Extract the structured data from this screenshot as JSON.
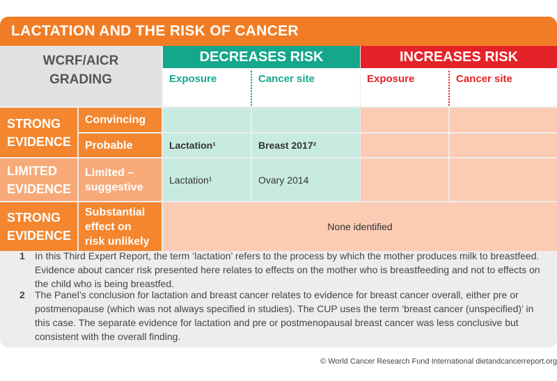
{
  "title": "LACTATION AND THE RISK OF CANCER",
  "grading_header": [
    "WCRF/AICR",
    "GRADING"
  ],
  "decreases_header": "DECREASES RISK",
  "increases_header": "INCREASES RISK",
  "subheaders": {
    "dec_exposure": "Exposure",
    "dec_site": "Cancer site",
    "inc_exposure": "Exposure",
    "inc_site": "Cancer site"
  },
  "rows": {
    "strong_label": [
      "STRONG",
      "EVIDENCE"
    ],
    "convincing": "Convincing",
    "probable": "Probable",
    "probable_exposure": "Lactation¹",
    "probable_site": "Breast 2017²",
    "limited_label": [
      "LIMITED",
      "EVIDENCE"
    ],
    "limited_grade": [
      "Limited –",
      "suggestive"
    ],
    "limited_exposure": "Lactation¹",
    "limited_site": "Ovary 2014",
    "strong2_label": [
      "STRONG",
      "EVIDENCE"
    ],
    "substantial_grade": [
      "Substantial",
      "effect on",
      "risk unlikely"
    ],
    "none_identified": "None identified"
  },
  "footnotes": [
    {
      "num": "1",
      "text": "In this Third Expert Report, the term ‘lactation’ refers to the process by which the mother produces milk to breastfeed. Evidence about cancer risk presented here relates to effects on the mother who is breastfeeding and not to effects on the child who is being breastfed."
    },
    {
      "num": "2",
      "text": "The Panel’s conclusion for lactation and breast cancer relates to evidence for breast cancer overall, either pre or postmenopause (which was not always specified in studies). The CUP uses the term ‘breast cancer (unspecified)’ in this case. The separate evidence for lactation and pre or postmenopausal breast cancer was less conclusive but consistent with the overall finding."
    }
  ],
  "copyright": "© World Cancer Research Fund International  dietandcancerreport.org",
  "colors": {
    "orange": "#f07d26",
    "teal": "#14a789",
    "red": "#e42328",
    "peach": "#fbcbb4",
    "mint": "#c8ebe1"
  }
}
